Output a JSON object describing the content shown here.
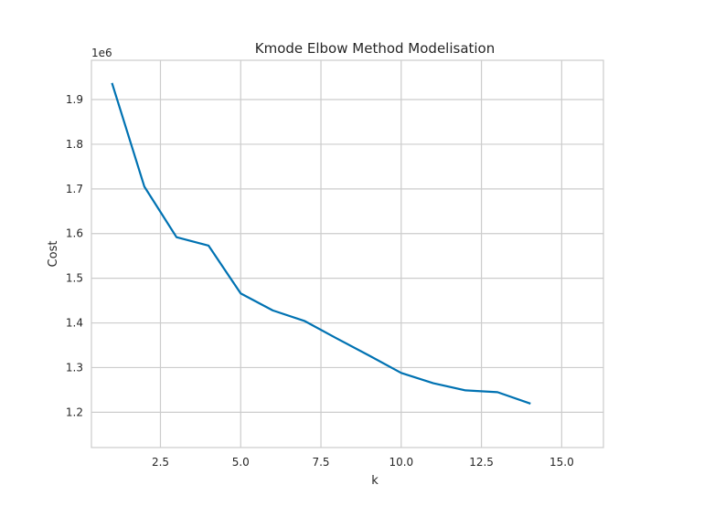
{
  "chart_data": {
    "type": "line",
    "title": "Kmode Elbow Method Modelisation",
    "xlabel": "k",
    "ylabel": "Cost",
    "y_offset_label": "1e6",
    "x": [
      1,
      2,
      3,
      4,
      5,
      6,
      7,
      8,
      9,
      10,
      11,
      12,
      13,
      14
    ],
    "series": [
      {
        "values": [
          1.935,
          1.705,
          1.592,
          1.573,
          1.466,
          1.428,
          1.404,
          1.365,
          1.327,
          1.288,
          1.265,
          1.249,
          1.245,
          1.22
        ]
      }
    ],
    "xlim": [
      0.35,
      16.3
    ],
    "ylim": [
      1.121,
      1.988
    ],
    "xticks": [
      2.5,
      5.0,
      7.5,
      10.0,
      12.5,
      15.0
    ],
    "xtick_labels": [
      "2.5",
      "5.0",
      "7.5",
      "10.0",
      "12.5",
      "15.0"
    ],
    "yticks": [
      1.2,
      1.3,
      1.4,
      1.5,
      1.6,
      1.7,
      1.8,
      1.9
    ],
    "ytick_labels": [
      "1.2",
      "1.3",
      "1.4",
      "1.5",
      "1.6",
      "1.7",
      "1.8",
      "1.9"
    ],
    "grid": true,
    "colors": {
      "line": "#0072b2",
      "grid": "#cccccc",
      "frame": "#cccccc",
      "text": "#262626"
    }
  }
}
